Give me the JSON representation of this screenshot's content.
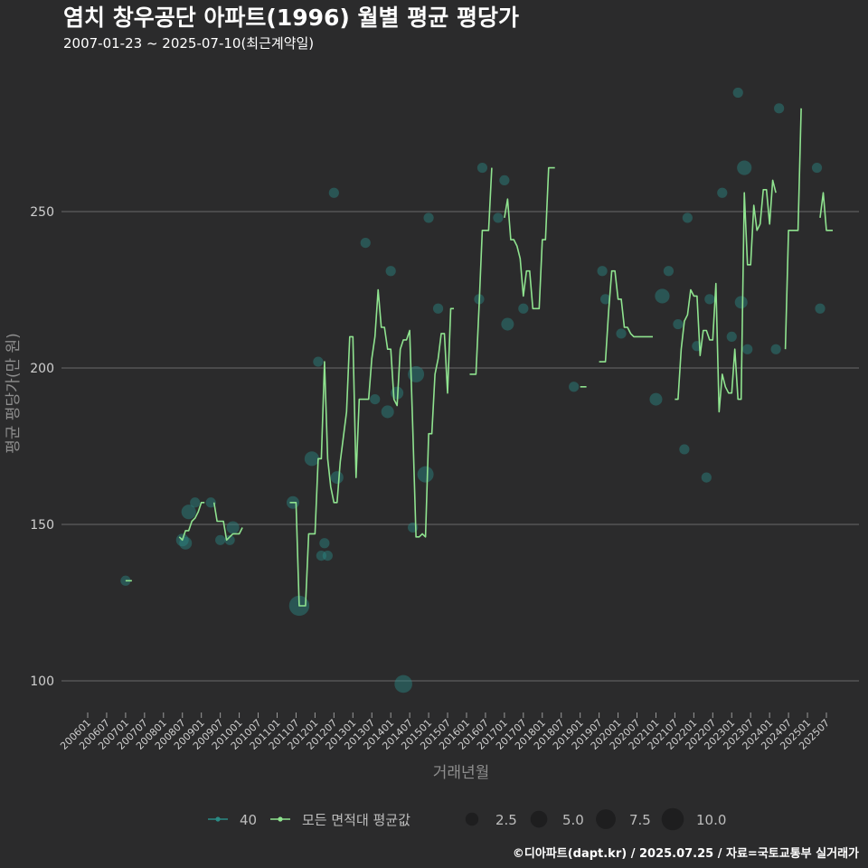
{
  "chart_data": {
    "type": "line",
    "title": "염치 창우공단 아파트(1996) 월별 평균 평당가",
    "subtitle": "2007-01-23 ~ 2025-07-10(최근계약일)",
    "xlabel": "거래년월",
    "ylabel": "평균 평당가(만 원)",
    "caption": "©디아파트(dapt.kr) / 2025.07.25 / 자료=국토교통부 실거래가",
    "x_range": [
      "2006-01",
      "2025-07"
    ],
    "ylim": [
      90,
      290
    ],
    "yticks": [
      100,
      150,
      200,
      250
    ],
    "xticks": [
      "200601",
      "200607",
      "200701",
      "200707",
      "200801",
      "200807",
      "200901",
      "200907",
      "201001",
      "201007",
      "201101",
      "201107",
      "201201",
      "201207",
      "201301",
      "201307",
      "201401",
      "201407",
      "201501",
      "201507",
      "201601",
      "201607",
      "201701",
      "201707",
      "201801",
      "201807",
      "201901",
      "201907",
      "202001",
      "202007",
      "202101",
      "202107",
      "202201",
      "202207",
      "202301",
      "202307",
      "202401",
      "202407",
      "202501",
      "202507"
    ],
    "grid": true,
    "legend": {
      "position": "bottom",
      "series_labels": [
        "40",
        "모든 면적대 평균값"
      ],
      "size_labels": [
        "2.5",
        "5.0",
        "7.5",
        "10.0"
      ],
      "size_values": [
        2.5,
        5.0,
        7.5,
        10.0
      ]
    },
    "series": [
      {
        "name": "40",
        "kind": "points",
        "color": "#2a8a84",
        "points": [
          [
            "2007-01",
            132,
            1
          ],
          [
            "2008-07",
            145,
            2
          ],
          [
            "2008-08",
            144,
            2
          ],
          [
            "2008-09",
            154,
            3
          ],
          [
            "2008-11",
            157,
            1
          ],
          [
            "2009-04",
            157,
            1
          ],
          [
            "2009-07",
            145,
            1
          ],
          [
            "2009-10",
            145,
            1
          ],
          [
            "2009-11",
            149,
            2
          ],
          [
            "2011-06",
            157,
            2
          ],
          [
            "2011-08",
            124,
            7
          ],
          [
            "2011-12",
            171,
            3
          ],
          [
            "2012-02",
            202,
            1
          ],
          [
            "2012-03",
            140,
            1
          ],
          [
            "2012-04",
            144,
            1
          ],
          [
            "2012-05",
            140,
            1
          ],
          [
            "2012-07",
            256,
            1
          ],
          [
            "2012-08",
            165,
            2
          ],
          [
            "2013-05",
            240,
            1
          ],
          [
            "2013-08",
            190,
            1
          ],
          [
            "2013-12",
            186,
            2
          ],
          [
            "2014-01",
            231,
            1
          ],
          [
            "2014-03",
            192,
            2
          ],
          [
            "2014-05",
            99,
            5
          ],
          [
            "2014-08",
            149,
            1
          ],
          [
            "2014-09",
            198,
            4
          ],
          [
            "2014-12",
            166,
            4
          ],
          [
            "2015-01",
            248,
            1
          ],
          [
            "2015-04",
            219,
            1
          ],
          [
            "2016-06",
            264,
            1
          ],
          [
            "2016-05",
            222,
            1
          ],
          [
            "2016-11",
            248,
            1
          ],
          [
            "2017-01",
            260,
            1
          ],
          [
            "2017-02",
            214,
            2
          ],
          [
            "2017-07",
            219,
            1
          ],
          [
            "2018-11",
            194,
            1
          ],
          [
            "2019-08",
            231,
            1
          ],
          [
            "2019-09",
            222,
            1
          ],
          [
            "2020-02",
            211,
            1
          ],
          [
            "2021-01",
            190,
            2
          ],
          [
            "2021-03",
            223,
            3
          ],
          [
            "2021-05",
            231,
            1
          ],
          [
            "2021-08",
            214,
            1
          ],
          [
            "2021-10",
            174,
            1
          ],
          [
            "2021-11",
            248,
            1
          ],
          [
            "2022-02",
            207,
            1
          ],
          [
            "2022-05",
            165,
            1
          ],
          [
            "2022-06",
            222,
            1
          ],
          [
            "2022-10",
            256,
            1
          ],
          [
            "2023-01",
            210,
            1
          ],
          [
            "2023-03",
            288,
            1
          ],
          [
            "2023-04",
            221,
            2
          ],
          [
            "2023-05",
            264,
            3
          ],
          [
            "2023-06",
            206,
            1
          ],
          [
            "2024-03",
            206,
            1
          ],
          [
            "2024-04",
            283,
            1
          ],
          [
            "2025-04",
            264,
            1
          ],
          [
            "2025-05",
            219,
            1
          ]
        ]
      },
      {
        "name": "모든 면적대 평균값",
        "kind": "line",
        "color": "#8fe38f",
        "segments": [
          [
            [
              "2007-01",
              132
            ],
            [
              "2007-03",
              132
            ]
          ],
          [
            [
              "2008-06",
              146
            ],
            [
              "2008-07",
              145
            ],
            [
              "2008-08",
              148
            ],
            [
              "2008-09",
              148
            ],
            [
              "2008-10",
              151
            ],
            [
              "2008-11",
              152
            ],
            [
              "2008-12",
              154
            ],
            [
              "2009-01",
              157
            ],
            [
              "2009-02",
              157
            ]
          ],
          [
            [
              "2009-05",
              157
            ],
            [
              "2009-06",
              151
            ],
            [
              "2009-07",
              151
            ],
            [
              "2009-08",
              151
            ],
            [
              "2009-09",
              145
            ],
            [
              "2009-10",
              146
            ],
            [
              "2009-11",
              147
            ],
            [
              "2009-12",
              147
            ],
            [
              "2010-01",
              147
            ],
            [
              "2010-02",
              149
            ]
          ],
          [
            [
              "2011-05",
              157
            ],
            [
              "2011-06",
              157
            ],
            [
              "2011-07",
              157
            ],
            [
              "2011-08",
              124
            ],
            [
              "2011-09",
              124
            ],
            [
              "2011-10",
              124
            ],
            [
              "2011-11",
              147
            ],
            [
              "2011-12",
              147
            ],
            [
              "2012-01",
              147
            ],
            [
              "2012-02",
              171
            ],
            [
              "2012-03",
              171
            ],
            [
              "2012-04",
              202
            ],
            [
              "2012-05",
              171
            ],
            [
              "2012-06",
              162
            ],
            [
              "2012-07",
              157
            ],
            [
              "2012-08",
              157
            ],
            [
              "2012-09",
              170
            ],
            [
              "2012-10",
              178
            ],
            [
              "2012-11",
              186
            ],
            [
              "2012-12",
              210
            ],
            [
              "2013-01",
              210
            ],
            [
              "2013-02",
              165
            ],
            [
              "2013-03",
              190
            ],
            [
              "2013-04",
              190
            ],
            [
              "2013-05",
              190
            ],
            [
              "2013-06",
              190
            ],
            [
              "2013-07",
              203
            ],
            [
              "2013-08",
              210
            ],
            [
              "2013-09",
              225
            ],
            [
              "2013-10",
              213
            ],
            [
              "2013-11",
              213
            ],
            [
              "2013-12",
              206
            ],
            [
              "2014-01",
              206
            ],
            [
              "2014-02",
              190
            ],
            [
              "2014-03",
              188
            ],
            [
              "2014-04",
              206
            ],
            [
              "2014-05",
              209
            ],
            [
              "2014-06",
              209
            ],
            [
              "2014-07",
              212
            ],
            [
              "2014-08",
              180
            ],
            [
              "2014-09",
              146
            ],
            [
              "2014-10",
              146
            ],
            [
              "2014-11",
              147
            ],
            [
              "2014-12",
              146
            ],
            [
              "2015-01",
              179
            ],
            [
              "2015-02",
              179
            ],
            [
              "2015-03",
              198
            ],
            [
              "2015-04",
              203
            ],
            [
              "2015-05",
              211
            ],
            [
              "2015-06",
              211
            ],
            [
              "2015-07",
              192
            ],
            [
              "2015-08",
              219
            ],
            [
              "2015-09",
              219
            ]
          ],
          [
            [
              "2016-02",
              198
            ],
            [
              "2016-03",
              198
            ],
            [
              "2016-04",
              198
            ],
            [
              "2016-05",
              220
            ],
            [
              "2016-06",
              244
            ],
            [
              "2016-07",
              244
            ],
            [
              "2016-08",
              244
            ],
            [
              "2016-09",
              264
            ]
          ],
          [
            [
              "2017-01",
              248
            ],
            [
              "2017-02",
              254
            ],
            [
              "2017-03",
              241
            ],
            [
              "2017-04",
              241
            ],
            [
              "2017-05",
              239
            ],
            [
              "2017-06",
              235
            ],
            [
              "2017-07",
              223
            ],
            [
              "2017-08",
              231
            ],
            [
              "2017-09",
              231
            ],
            [
              "2017-10",
              219
            ],
            [
              "2017-11",
              219
            ],
            [
              "2017-12",
              219
            ],
            [
              "2018-01",
              241
            ],
            [
              "2018-02",
              241
            ],
            [
              "2018-03",
              264
            ],
            [
              "2018-04",
              264
            ],
            [
              "2018-05",
              264
            ]
          ],
          [
            [
              "2019-01",
              194
            ],
            [
              "2019-02",
              194
            ],
            [
              "2019-03",
              194
            ]
          ],
          [
            [
              "2019-07",
              202
            ],
            [
              "2019-08",
              202
            ],
            [
              "2019-09",
              202
            ],
            [
              "2019-10",
              218
            ],
            [
              "2019-11",
              231
            ],
            [
              "2019-12",
              231
            ],
            [
              "2020-01",
              222
            ],
            [
              "2020-02",
              222
            ],
            [
              "2020-03",
              213
            ],
            [
              "2020-04",
              213
            ],
            [
              "2020-05",
              211
            ],
            [
              "2020-06",
              210
            ],
            [
              "2020-07",
              210
            ],
            [
              "2020-08",
              210
            ],
            [
              "2020-09",
              210
            ],
            [
              "2020-10",
              210
            ],
            [
              "2020-11",
              210
            ],
            [
              "2020-12",
              210
            ]
          ],
          [
            [
              "2021-07",
              190
            ],
            [
              "2021-08",
              190
            ],
            [
              "2021-09",
              206
            ],
            [
              "2021-10",
              215
            ],
            [
              "2021-11",
              217
            ],
            [
              "2021-12",
              225
            ],
            [
              "2022-01",
              223
            ],
            [
              "2022-02",
              223
            ],
            [
              "2022-03",
              204
            ],
            [
              "2022-04",
              212
            ],
            [
              "2022-05",
              212
            ],
            [
              "2022-06",
              209
            ],
            [
              "2022-07",
              209
            ],
            [
              "2022-08",
              227
            ],
            [
              "2022-09",
              186
            ],
            [
              "2022-10",
              198
            ],
            [
              "2022-11",
              194
            ],
            [
              "2022-12",
              192
            ],
            [
              "2023-01",
              192
            ],
            [
              "2023-02",
              206
            ],
            [
              "2023-03",
              190
            ],
            [
              "2023-04",
              190
            ],
            [
              "2023-05",
              256
            ],
            [
              "2023-06",
              233
            ],
            [
              "2023-07",
              233
            ],
            [
              "2023-08",
              252
            ],
            [
              "2023-09",
              244
            ],
            [
              "2023-10",
              246
            ],
            [
              "2023-11",
              257
            ],
            [
              "2023-12",
              257
            ],
            [
              "2024-01",
              246
            ],
            [
              "2024-02",
              260
            ],
            [
              "2024-03",
              256
            ]
          ],
          [
            [
              "2024-06",
              206
            ],
            [
              "2024-07",
              244
            ],
            [
              "2024-08",
              244
            ],
            [
              "2024-09",
              244
            ],
            [
              "2024-10",
              244
            ],
            [
              "2024-11",
              283
            ]
          ],
          [
            [
              "2025-05",
              248
            ],
            [
              "2025-06",
              256
            ],
            [
              "2025-07",
              244
            ],
            [
              "2025-08",
              244
            ],
            [
              "2025-09",
              244
            ]
          ]
        ]
      }
    ]
  }
}
